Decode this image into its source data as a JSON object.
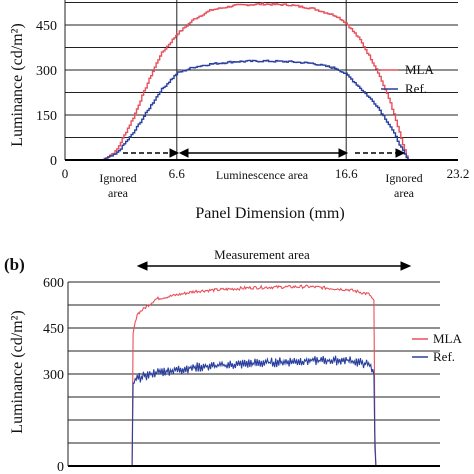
{
  "chart_data": [
    {
      "panel_label": "",
      "type": "line",
      "ylabel": "Luminance (cd/m²)",
      "xlabel": "Panel Dimension (mm)",
      "xlim": [
        0,
        23.2
      ],
      "ylim": [
        0,
        600
      ],
      "grid": true,
      "legend_position": "right",
      "x_tick_labels": [
        "0",
        "6.6",
        "16.6",
        "23.2"
      ],
      "y_tick_labels": [
        "0",
        "150",
        "300",
        "450"
      ],
      "annotations": {
        "ignored_left": [
          "Ignored",
          "area"
        ],
        "luminescence": "Luminescence area",
        "ignored_right": [
          "Ignored",
          "area"
        ]
      },
      "series": [
        {
          "name": "MLA",
          "color": "#e8505b",
          "x": [
            0,
            2.2,
            3.0,
            4.0,
            4.8,
            5.6,
            6.6,
            7.6,
            8.6,
            10.0,
            11.6,
            13.2,
            14.6,
            16.0,
            16.6,
            17.4,
            18.4,
            19.2,
            20.2,
            23.2
          ],
          "y": [
            0,
            0,
            30,
            140,
            250,
            350,
            420,
            470,
            500,
            515,
            520,
            517,
            505,
            480,
            455,
            400,
            300,
            190,
            0,
            0
          ]
        },
        {
          "name": "Ref.",
          "color": "#2a3f9e",
          "x": [
            0,
            2.2,
            3.0,
            4.0,
            4.8,
            5.6,
            6.6,
            7.6,
            8.6,
            10.0,
            11.6,
            13.2,
            14.6,
            16.0,
            16.6,
            17.4,
            18.4,
            19.2,
            20.2,
            23.2
          ],
          "y": [
            0,
            0,
            20,
            90,
            160,
            230,
            290,
            310,
            320,
            328,
            330,
            328,
            322,
            305,
            285,
            240,
            180,
            110,
            0,
            0
          ]
        }
      ]
    },
    {
      "panel_label": "(b)",
      "type": "line",
      "ylabel": "Luminance (cd/m²)",
      "xlim": [
        0,
        23.2
      ],
      "ylim": [
        0,
        600
      ],
      "grid": true,
      "legend_position": "right",
      "y_tick_labels": [
        "0",
        "300",
        "450",
        "600"
      ],
      "annotations": {
        "measurement": "Measurement area"
      },
      "series": [
        {
          "name": "MLA",
          "color": "#e8505b",
          "x": [
            0,
            4.0,
            4.05,
            4.3,
            5.5,
            8.0,
            11.6,
            15.0,
            17.5,
            18.8,
            19.1,
            19.15,
            23.2
          ],
          "y": [
            0,
            0,
            430,
            495,
            545,
            570,
            582,
            585,
            575,
            560,
            535,
            0,
            0
          ]
        },
        {
          "name": "Ref.",
          "color": "#2a3f9e",
          "x": [
            0,
            4.0,
            4.05,
            4.3,
            5.5,
            8.0,
            11.6,
            15.0,
            17.5,
            18.8,
            19.1,
            19.15,
            23.2
          ],
          "y": [
            0,
            0,
            270,
            285,
            305,
            322,
            335,
            343,
            345,
            330,
            305,
            0,
            0
          ]
        }
      ]
    }
  ]
}
